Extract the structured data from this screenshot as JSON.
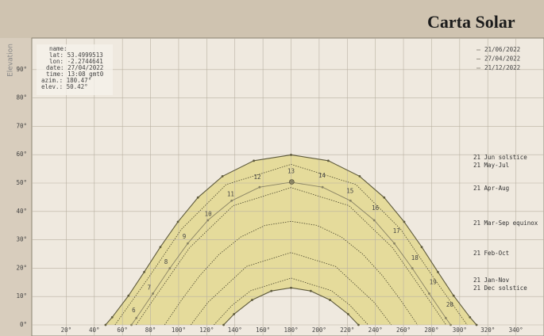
{
  "chart_data": {
    "type": "line",
    "title": "Carta Solar",
    "y_label": "Elevation",
    "info": [
      "name:",
      "lat: 53.4999513",
      "lon: -2.2744641",
      "date: 27/04/2022",
      "time: 13:08 gmt0",
      "azim.: 180.47°",
      "elev.: 50.42°"
    ],
    "xlim": [
      0,
      360
    ],
    "ylim": [
      0,
      100
    ],
    "xticks": [
      {
        "value": 20,
        "label": "20°"
      },
      {
        "value": 40,
        "label": "40°"
      },
      {
        "value": 60,
        "label": "60°"
      },
      {
        "value": 80,
        "label": "80°"
      },
      {
        "value": 100,
        "label": "100°"
      },
      {
        "value": 120,
        "label": "120°"
      },
      {
        "value": 140,
        "label": "140°"
      },
      {
        "value": 160,
        "label": "160°"
      },
      {
        "value": 180,
        "label": "180°"
      },
      {
        "value": 200,
        "label": "200°"
      },
      {
        "value": 220,
        "label": "220°"
      },
      {
        "value": 240,
        "label": "240°"
      },
      {
        "value": 260,
        "label": "260°"
      },
      {
        "value": 280,
        "label": "280°"
      },
      {
        "value": 300,
        "label": "300°"
      },
      {
        "value": 320,
        "label": "320°"
      },
      {
        "value": 340,
        "label": "340°"
      }
    ],
    "yticks": [
      {
        "value": 0,
        "label": "0°"
      },
      {
        "value": 10,
        "label": "10°"
      },
      {
        "value": 20,
        "label": "20°"
      },
      {
        "value": 30,
        "label": "30°"
      },
      {
        "value": 40,
        "label": "40°"
      },
      {
        "value": 50,
        "label": "50°"
      },
      {
        "value": 60,
        "label": "60°"
      },
      {
        "value": 70,
        "label": "70°"
      },
      {
        "value": 80,
        "label": "80°"
      },
      {
        "value": 90,
        "label": "90°"
      }
    ],
    "grid": true,
    "band_color": "#e2d78a",
    "series": [
      {
        "name": "21/06/2022",
        "label": "21 Jun  solstice",
        "color": "#5e5a3c",
        "x": [
          48.0,
          52.7,
          64.3,
          75.5,
          87.0,
          99.5,
          113.7,
          131.2,
          153.5,
          180,
          206.5,
          228.8,
          246.3,
          260.5,
          273.0,
          284.5,
          295.7,
          307.3,
          312.0
        ],
        "values": [
          0,
          2.69,
          10.29,
          18.65,
          27.45,
          36.35,
          44.89,
          52.41,
          57.87,
          59.94,
          57.87,
          52.41,
          44.89,
          36.35,
          27.45,
          18.65,
          10.29,
          2.69,
          0
        ]
      },
      {
        "name": "27/04/2022",
        "color": "#8a8464",
        "x": [
          66.4,
          69.9,
          81.7,
          93.7,
          106.5,
          120.8,
          137.7,
          157.6,
          180,
          202.4,
          222.3,
          239.2,
          253.5,
          266.3,
          278.3,
          290.1,
          293.6
        ],
        "values": [
          0,
          2.42,
          11.05,
          19.95,
          28.72,
          36.88,
          43.78,
          48.55,
          50.3,
          48.55,
          43.78,
          36.88,
          28.72,
          19.95,
          11.05,
          2.42,
          0
        ]
      },
      {
        "name": "21/12/2022",
        "label": "21 Dec  solstice",
        "color": "#5e5a3c",
        "x": [
          132.0,
          139.4,
          152.3,
          166.0,
          180,
          194.0,
          207.7,
          220.6,
          228.0
        ],
        "values": [
          0,
          3.79,
          8.79,
          11.96,
          13.06,
          11.96,
          8.79,
          3.79,
          0
        ]
      }
    ],
    "guides": [
      {
        "label": "21 May-Jul",
        "x": [
          54.7,
          77.7,
          102.0,
          133.8,
          180,
          226.2,
          258.0,
          282.3,
          305.3
        ],
        "values": [
          0,
          16.04,
          33.75,
          49.47,
          56.6,
          49.47,
          33.75,
          16.04,
          0
        ]
      },
      {
        "label": "21 Apr-Aug",
        "x": [
          69.7,
          82.9,
          107.7,
          138.8,
          180,
          221.2,
          252.3,
          277.1,
          290.3
        ],
        "values": [
          0,
          9.54,
          27.18,
          42.05,
          48.4,
          42.05,
          27.18,
          9.54,
          0
        ]
      },
      {
        "label": "21 Mar-Sep equinox",
        "x": [
          90,
          102.2,
          114.9,
          128.8,
          144.3,
          161.5,
          180,
          198.5,
          215.7,
          231.2,
          245.1,
          257.8,
          270
        ],
        "values": [
          0,
          8.85,
          17.3,
          24.87,
          31.0,
          35.07,
          36.5,
          35.07,
          31.0,
          24.87,
          17.3,
          8.85,
          0
        ]
      },
      {
        "label": "21 Feb-Oct",
        "x": [
          108.7,
          120.9,
          148.4,
          180,
          211.6,
          239.1,
          251.3
        ],
        "values": [
          0,
          7.97,
          20.63,
          25.5,
          20.63,
          7.97,
          0
        ]
      },
      {
        "label": "21 Jan-Nov",
        "x": [
          125.1,
          138.0,
          151.3,
          180,
          208.7,
          222.0,
          234.9
        ],
        "values": [
          0,
          6.91,
          12.07,
          16.5,
          12.07,
          6.91,
          0
        ]
      }
    ],
    "hours": [
      {
        "hour": 6,
        "x": 68,
        "y": 5
      },
      {
        "hour": 7,
        "x": 79,
        "y": 13
      },
      {
        "hour": 8,
        "x": 91,
        "y": 22
      },
      {
        "hour": 9,
        "x": 104,
        "y": 31
      },
      {
        "hour": 10,
        "x": 121,
        "y": 39
      },
      {
        "hour": 11,
        "x": 137,
        "y": 46
      },
      {
        "hour": 12,
        "x": 156,
        "y": 52
      },
      {
        "hour": 13,
        "x": 180,
        "y": 54
      },
      {
        "hour": 14,
        "x": 202,
        "y": 52.5
      },
      {
        "hour": 15,
        "x": 222,
        "y": 47
      },
      {
        "hour": 16,
        "x": 240,
        "y": 41
      },
      {
        "hour": 17,
        "x": 255,
        "y": 33
      },
      {
        "hour": 18,
        "x": 268,
        "y": 23.5
      },
      {
        "hour": 19,
        "x": 281,
        "y": 15
      },
      {
        "hour": 20,
        "x": 293,
        "y": 7
      }
    ],
    "sun_position": {
      "x": 180.47,
      "y": 50.42
    }
  }
}
